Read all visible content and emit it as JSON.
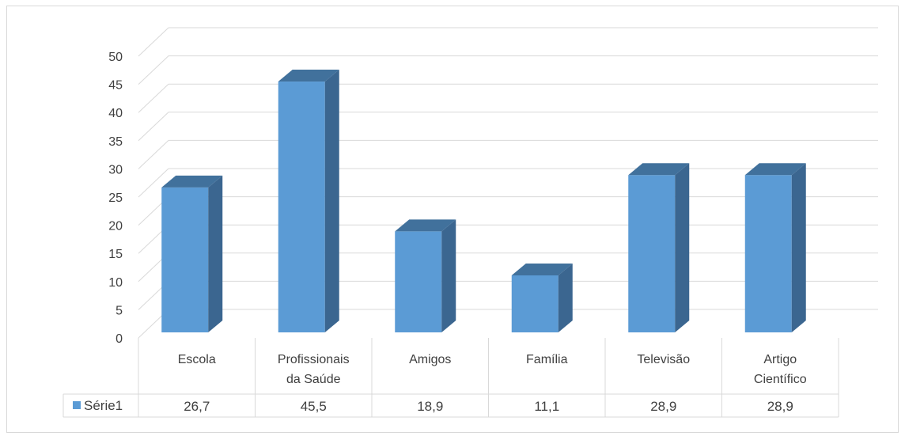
{
  "chart_data": {
    "type": "bar",
    "categories": [
      [
        "Escola"
      ],
      [
        "Profissionais",
        "da Saúde"
      ],
      [
        "Amigos"
      ],
      [
        "Família"
      ],
      [
        "Televisão"
      ],
      [
        "Artigo",
        "Científico"
      ]
    ],
    "series": [
      {
        "name": "Série1",
        "values": [
          26.7,
          45.5,
          18.9,
          11.1,
          28.9,
          28.9
        ],
        "value_labels": [
          "26,7",
          "45,5",
          "18,9",
          "11,1",
          "28,9",
          "28,9"
        ]
      }
    ],
    "ylim": [
      0,
      50
    ],
    "yticks": [
      0,
      5,
      10,
      15,
      20,
      25,
      30,
      35,
      40,
      45,
      50
    ],
    "grid": true,
    "style_3d": true,
    "legend_placement": "data-table-left",
    "colors": {
      "bar_front": "#5b9bd5",
      "bar_side": "#3b6690",
      "bar_top": "#41719c",
      "grid": "#d9d9d9",
      "text": "#404040"
    }
  }
}
